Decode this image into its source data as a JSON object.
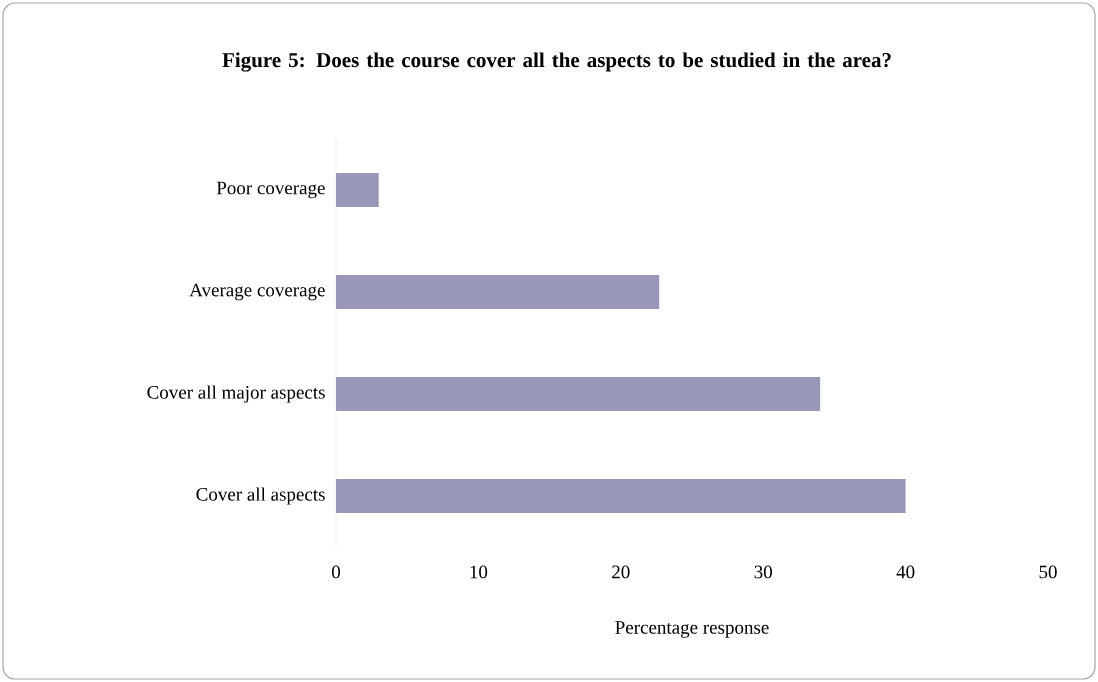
{
  "chart_data": {
    "type": "bar",
    "orientation": "horizontal",
    "title": "**Figure 5: Does the course cover all the aspects to be studied in the area?**",
    "xlabel": "Percentage response",
    "categories": [
      "Poor coverage",
      "Average coverage",
      "Cover all major aspects",
      "Cover all aspects"
    ],
    "values": [
      3,
      22.7,
      34,
      40
    ],
    "color": "#9a98b8",
    "xlim": [
      0,
      50
    ],
    "xticks": [
      0,
      10,
      20,
      30,
      40,
      50
    ],
    "grid": false
  }
}
